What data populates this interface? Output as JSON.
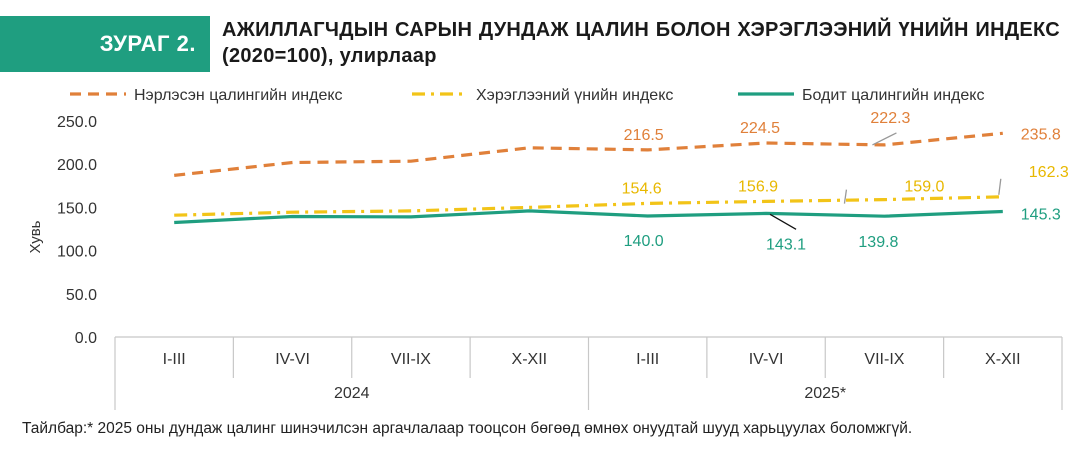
{
  "figure": {
    "label": "ЗУРАГ 2.",
    "title": "АЖИЛЛАГЧДЫН САРЫН ДУНДАЖ ЦАЛИН БОЛОН ХЭРЭГЛЭЭНИЙ ҮНИЙН ИНДЕКС (2020=100), улирлаар",
    "note": "Тайлбар:* 2025 оны дундаж цалинг шинэчилсэн аргачлалаар тооцсон бөгөөд өмнөх онуудтай шууд харьцуулах боломжгүй."
  },
  "chart_data": {
    "type": "line",
    "ylabel": "Хувь",
    "ylim": [
      0,
      250
    ],
    "yticks": [
      "0.0",
      "50.0",
      "100.0",
      "150.0",
      "200.0",
      "250.0"
    ],
    "grid": false,
    "legend_position": "top",
    "categories": [
      "I-III",
      "IV-VI",
      "VII-IX",
      "X-XII",
      "I-III",
      "IV-VI",
      "VII-IX",
      "X-XII"
    ],
    "groups": [
      {
        "label": "2024",
        "span": 4
      },
      {
        "label": "2025*",
        "span": 4
      }
    ],
    "series": [
      {
        "name": "Нэрлэсэн цалингийн индекс",
        "color": "#e0803a",
        "style": "dashed",
        "values": [
          187.0,
          202.0,
          203.5,
          219.0,
          216.5,
          224.5,
          222.3,
          235.8
        ],
        "labels": [
          "",
          "",
          "",
          "",
          "216.5",
          "224.5",
          "222.3",
          "235.8"
        ]
      },
      {
        "name": "Хэрэглээний үнийн индекс",
        "color": "#f2c418",
        "style": "dashdot",
        "values": [
          141.0,
          144.5,
          146.0,
          150.0,
          154.6,
          156.9,
          159.0,
          162.3
        ],
        "labels": [
          "",
          "",
          "",
          "",
          "154.6",
          "156.9",
          "159.0",
          "162.3"
        ]
      },
      {
        "name": "Бодит цалингийн индекс",
        "color": "#1f9e80",
        "style": "solid",
        "values": [
          132.5,
          139.5,
          139.0,
          146.0,
          140.0,
          143.1,
          139.8,
          145.3
        ],
        "labels": [
          "",
          "",
          "",
          "",
          "140.0",
          "143.1",
          "139.8",
          "145.3"
        ]
      }
    ]
  }
}
